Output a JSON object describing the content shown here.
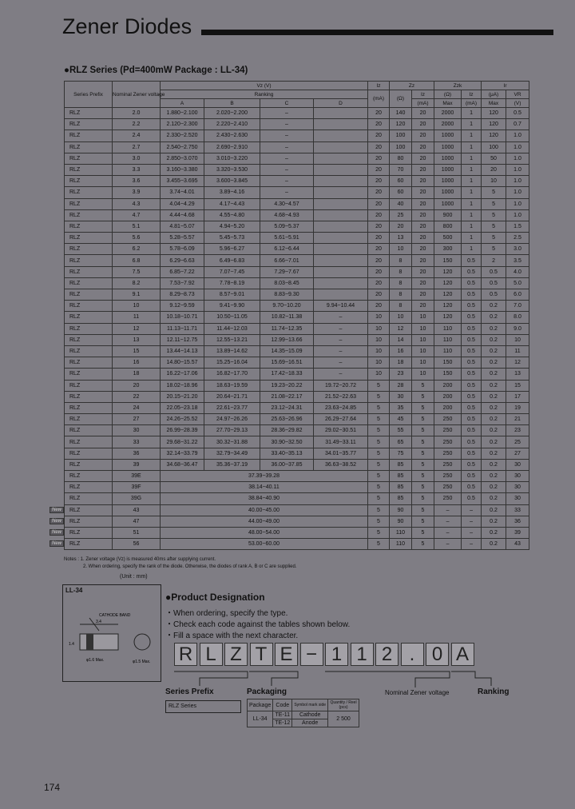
{
  "header": {
    "title": "Zener Diodes"
  },
  "series_heading": "●RLZ Series (Pd=400mW Package : LL-34)",
  "table": {
    "header": [
      [
        "Series Prefix",
        "Nominal Zener voltage",
        "Vz (V)",
        "Iz",
        "Zz",
        "Zzk",
        "Ir"
      ],
      [
        "Ranking",
        "(mA)",
        "(Ω)",
        "Iz",
        "(Ω)",
        "Iz",
        "(μA)",
        "VR"
      ],
      [
        "A",
        "B",
        "C",
        "D",
        "(mA)",
        "Max",
        "(mA)",
        "Max",
        "(V)"
      ]
    ],
    "rows": [
      {
        "cells": [
          "RLZ",
          "2.0",
          "1.880~2.100",
          "2.020~2.200",
          "–",
          null,
          "20",
          "140",
          "20",
          "2000",
          "1",
          "120",
          "0.5"
        ]
      },
      {
        "cells": [
          "RLZ",
          "2.2",
          "2.120~2.300",
          "2.220~2.410",
          "–",
          null,
          "20",
          "120",
          "20",
          "2000",
          "1",
          "120",
          "0.7"
        ]
      },
      {
        "cells": [
          "RLZ",
          "2.4",
          "2.330~2.520",
          "2.430~2.630",
          "–",
          null,
          "20",
          "100",
          "20",
          "1000",
          "1",
          "120",
          "1.0"
        ]
      },
      {
        "cells": [
          "RLZ",
          "2.7",
          "2.540~2.750",
          "2.690~2.910",
          "–",
          null,
          "20",
          "100",
          "20",
          "1000",
          "1",
          "100",
          "1.0"
        ]
      },
      {
        "cells": [
          "RLZ",
          "3.0",
          "2.850~3.070",
          "3.010~3.220",
          "–",
          null,
          "20",
          "80",
          "20",
          "1000",
          "1",
          "50",
          "1.0"
        ]
      },
      {
        "cells": [
          "RLZ",
          "3.3",
          "3.160~3.380",
          "3.320~3.530",
          "–",
          null,
          "20",
          "70",
          "20",
          "1000",
          "1",
          "20",
          "1.0"
        ]
      },
      {
        "cells": [
          "RLZ",
          "3.6",
          "3.455~3.695",
          "3.600~3.845",
          "–",
          null,
          "20",
          "60",
          "20",
          "1000",
          "1",
          "10",
          "1.0"
        ]
      },
      {
        "cells": [
          "RLZ",
          "3.9",
          "3.74~4.01",
          "3.89~4.16",
          "–",
          null,
          "20",
          "60",
          "20",
          "1000",
          "1",
          "5",
          "1.0"
        ]
      },
      {
        "cells": [
          "RLZ",
          "4.3",
          "4.04~4.29",
          "4.17~4.43",
          "4.30~4.57",
          null,
          "20",
          "40",
          "20",
          "1000",
          "1",
          "5",
          "1.0"
        ]
      },
      {
        "cells": [
          "RLZ",
          "4.7",
          "4.44~4.68",
          "4.55~4.80",
          "4.68~4.93",
          null,
          "20",
          "25",
          "20",
          "900",
          "1",
          "5",
          "1.0"
        ]
      },
      {
        "cells": [
          "RLZ",
          "5.1",
          "4.81~5.07",
          "4.94~5.20",
          "5.09~5.37",
          null,
          "20",
          "20",
          "20",
          "800",
          "1",
          "5",
          "1.5"
        ]
      },
      {
        "cells": [
          "RLZ",
          "5.6",
          "5.28~5.57",
          "5.45~5.73",
          "5.61~5.91",
          null,
          "20",
          "13",
          "20",
          "500",
          "1",
          "5",
          "2.5"
        ]
      },
      {
        "cells": [
          "RLZ",
          "6.2",
          "5.78~6.09",
          "5.96~6.27",
          "6.12~6.44",
          null,
          "20",
          "10",
          "20",
          "300",
          "1",
          "5",
          "3.0"
        ]
      },
      {
        "cells": [
          "RLZ",
          "6.8",
          "6.29~6.63",
          "6.49~6.83",
          "6.66~7.01",
          null,
          "20",
          "8",
          "20",
          "150",
          "0.5",
          "2",
          "3.5"
        ]
      },
      {
        "cells": [
          "RLZ",
          "7.5",
          "6.85~7.22",
          "7.07~7.45",
          "7.29~7.67",
          null,
          "20",
          "8",
          "20",
          "120",
          "0.5",
          "0.5",
          "4.0"
        ]
      },
      {
        "cells": [
          "RLZ",
          "8.2",
          "7.53~7.92",
          "7.78~8.19",
          "8.03~8.45",
          null,
          "20",
          "8",
          "20",
          "120",
          "0.5",
          "0.5",
          "5.0"
        ]
      },
      {
        "cells": [
          "RLZ",
          "9.1",
          "8.29~8.73",
          "8.57~9.01",
          "8.83~9.30",
          null,
          "20",
          "8",
          "20",
          "120",
          "0.5",
          "0.5",
          "6.0"
        ]
      },
      {
        "cells": [
          "RLZ",
          "10",
          "9.12~9.59",
          "9.41~9.90",
          "9.70~10.20",
          "9.94~10.44",
          "20",
          "8",
          "20",
          "120",
          "0.5",
          "0.2",
          "7.0"
        ]
      },
      {
        "cells": [
          "RLZ",
          "11",
          "10.18~10.71",
          "10.50~11.05",
          "10.82~11.38",
          "–",
          "10",
          "10",
          "10",
          "120",
          "0.5",
          "0.2",
          "8.0"
        ]
      },
      {
        "cells": [
          "RLZ",
          "12",
          "11.13~11.71",
          "11.44~12.03",
          "11.74~12.35",
          "–",
          "10",
          "12",
          "10",
          "110",
          "0.5",
          "0.2",
          "9.0"
        ]
      },
      {
        "cells": [
          "RLZ",
          "13",
          "12.11~12.75",
          "12.55~13.21",
          "12.99~13.66",
          "–",
          "10",
          "14",
          "10",
          "110",
          "0.5",
          "0.2",
          "10"
        ]
      },
      {
        "cells": [
          "RLZ",
          "15",
          "13.44~14.13",
          "13.89~14.62",
          "14.35~15.09",
          "–",
          "10",
          "16",
          "10",
          "110",
          "0.5",
          "0.2",
          "11"
        ]
      },
      {
        "cells": [
          "RLZ",
          "16",
          "14.80~15.57",
          "15.25~16.04",
          "15.69~16.51",
          "–",
          "10",
          "18",
          "10",
          "150",
          "0.5",
          "0.2",
          "12"
        ]
      },
      {
        "cells": [
          "RLZ",
          "18",
          "16.22~17.06",
          "16.82~17.70",
          "17.42~18.33",
          "–",
          "10",
          "23",
          "10",
          "150",
          "0.5",
          "0.2",
          "13"
        ]
      },
      {
        "cells": [
          "RLZ",
          "20",
          "18.02~18.96",
          "18.63~19.59",
          "19.23~20.22",
          "19.72~20.72",
          "5",
          "28",
          "5",
          "200",
          "0.5",
          "0.2",
          "15"
        ]
      },
      {
        "cells": [
          "RLZ",
          "22",
          "20.15~21.20",
          "20.64~21.71",
          "21.08~22.17",
          "21.52~22.63",
          "5",
          "30",
          "5",
          "200",
          "0.5",
          "0.2",
          "17"
        ]
      },
      {
        "cells": [
          "RLZ",
          "24",
          "22.05~23.18",
          "22.61~23.77",
          "23.12~24.31",
          "23.63~24.85",
          "5",
          "35",
          "5",
          "200",
          "0.5",
          "0.2",
          "19"
        ]
      },
      {
        "cells": [
          "RLZ",
          "27",
          "24.26~25.52",
          "24.97~26.26",
          "25.63~26.96",
          "26.29~27.64",
          "5",
          "45",
          "5",
          "250",
          "0.5",
          "0.2",
          "21"
        ]
      },
      {
        "cells": [
          "RLZ",
          "30",
          "26.99~28.39",
          "27.70~29.13",
          "28.36~29.82",
          "29.02~30.51",
          "5",
          "55",
          "5",
          "250",
          "0.5",
          "0.2",
          "23"
        ]
      },
      {
        "cells": [
          "RLZ",
          "33",
          "29.68~31.22",
          "30.32~31.88",
          "30.90~32.50",
          "31.49~33.11",
          "5",
          "65",
          "5",
          "250",
          "0.5",
          "0.2",
          "25"
        ]
      },
      {
        "cells": [
          "RLZ",
          "36",
          "32.14~33.79",
          "32.79~34.49",
          "33.40~35.13",
          "34.01~35.77",
          "5",
          "75",
          "5",
          "250",
          "0.5",
          "0.2",
          "27"
        ]
      },
      {
        "cells": [
          "RLZ",
          "39",
          "34.68~36.47",
          "35.36~37.19",
          "36.00~37.85",
          "36.63~38.52",
          "5",
          "85",
          "5",
          "250",
          "0.5",
          "0.2",
          "30"
        ]
      },
      {
        "cells": [
          "RLZ",
          "39E",
          "37.39~39.28",
          "5",
          "85",
          "5",
          "250",
          "0.5",
          "0.2",
          "30"
        ]
      },
      {
        "cells": [
          "RLZ",
          "39F",
          "38.14~40.11",
          "5",
          "85",
          "5",
          "250",
          "0.5",
          "0.2",
          "30"
        ]
      },
      {
        "cells": [
          "RLZ",
          "39G",
          "38.84~40.90",
          "5",
          "85",
          "5",
          "250",
          "0.5",
          "0.2",
          "30"
        ]
      },
      {
        "badge": "New",
        "cells": [
          "RLZ",
          "43",
          "40.00~45.00",
          "5",
          "90",
          "5",
          "–",
          "–",
          "0.2",
          "33"
        ]
      },
      {
        "badge": "New",
        "cells": [
          "RLZ",
          "47",
          "44.00~49.00",
          "5",
          "90",
          "5",
          "–",
          "–",
          "0.2",
          "36"
        ]
      },
      {
        "badge": "New",
        "cells": [
          "RLZ",
          "51",
          "48.00~54.00",
          "5",
          "110",
          "5",
          "–",
          "–",
          "0.2",
          "39"
        ]
      },
      {
        "badge": "New",
        "cells": [
          "RLZ",
          "56",
          "53.00~60.00",
          "5",
          "110",
          "5",
          "–",
          "–",
          "0.2",
          "43"
        ]
      }
    ]
  },
  "notes": [
    "Notes : 1. Zener voltage (Vz) is measured 40ms after supplying current.",
    "2. When ordering, specify the rank of the diode. Otherwise, the diodes of rank A, B or C are supplied."
  ],
  "unit": "(Unit : mm)",
  "package_figure": {
    "title": "LL-34",
    "labels": [
      "CATHODE BAND",
      "3.4",
      "1.4",
      "φ1.6 Max.",
      "φ1.5 Max."
    ]
  },
  "designation": {
    "title": "●Product Designation",
    "bullets": [
      "・When ordering, specify the type.",
      "・Check each code against the tables shown below.",
      "・Fill a space with the next character."
    ],
    "code": [
      "R",
      "L",
      "Z",
      "T",
      "E",
      "−",
      "1",
      "1",
      "2",
      ".",
      "0",
      "A"
    ],
    "labels": [
      "Series Prefix",
      "Packaging",
      "Nominal Zener voltage",
      "Ranking"
    ],
    "series_table": [
      "RLZ Series"
    ],
    "packaging_table": {
      "header": [
        "Package",
        "Code",
        "Symbol mark side",
        "Quantity / Reel (pcs)"
      ],
      "rows": [
        [
          "LL-34",
          "TE-11",
          "Cathode",
          "2 500"
        ],
        [
          "TE-12",
          "Anode"
        ]
      ]
    }
  },
  "page_number": "174"
}
